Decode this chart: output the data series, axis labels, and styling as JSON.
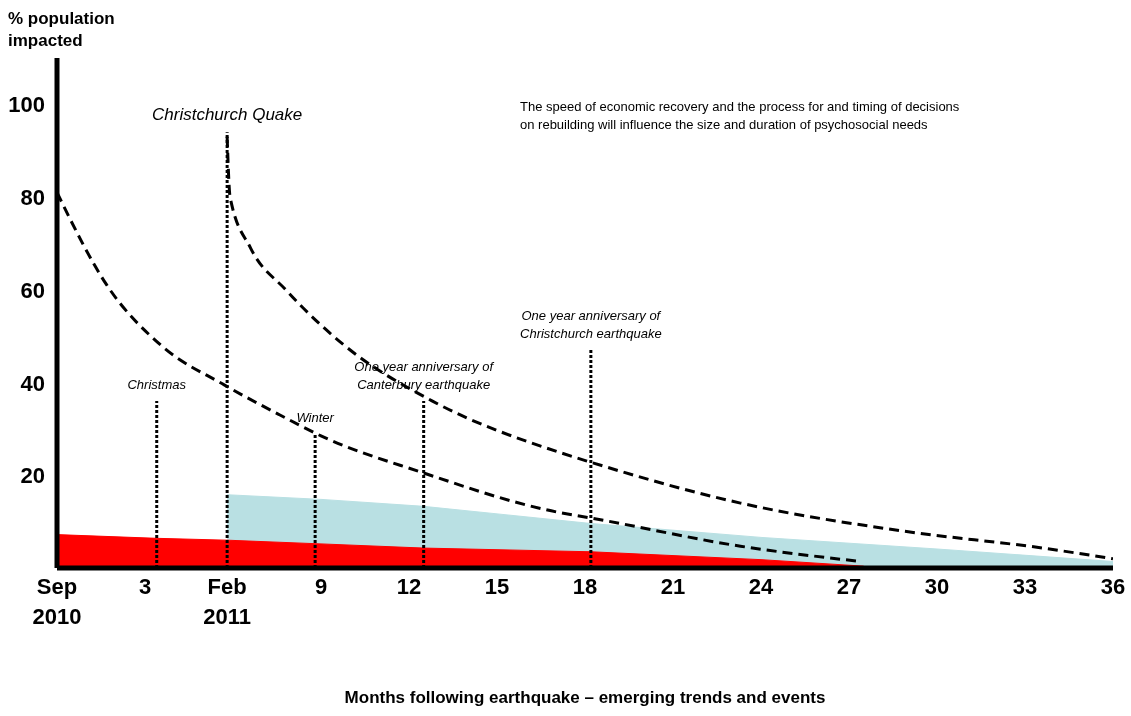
{
  "chart_data": {
    "type": "line",
    "ylabel": "% population impacted",
    "xlabel": "Months following earthquake – emerging trends and events",
    "xlim": [
      0,
      36
    ],
    "xticks": [
      {
        "value": 0,
        "label": "Sep 2010"
      },
      3,
      {
        "value": 5.8,
        "label": "Feb 2011"
      },
      9,
      12,
      15,
      18,
      21,
      24,
      27,
      30,
      33,
      36
    ],
    "ylim": [
      0,
      110
    ],
    "yticks": [
      20,
      40,
      60,
      80,
      100
    ],
    "grid": false,
    "marker": "none",
    "series": [
      {
        "type": "area",
        "color": "#b9e0e3",
        "x": [
          5.8,
          9,
          12.5,
          18.2,
          24,
          30,
          36
        ],
        "values": [
          15.8,
          14.8,
          13.3,
          9.6,
          6.6,
          4.1,
          1.4
        ]
      },
      {
        "type": "area",
        "color": "#ff0000",
        "x": [
          0,
          3.4,
          5.8,
          9,
          12.5,
          18.2,
          24,
          27.5
        ],
        "values": [
          7.2,
          6.4,
          6,
          5.2,
          4.3,
          3.5,
          1.8,
          0.4
        ]
      },
      {
        "color": "#000000",
        "line_style": "dashed",
        "x": [
          0,
          1.7,
          3.55,
          5.7,
          7.6,
          9,
          12.4,
          17.1,
          18.1,
          23.3,
          27.4
        ],
        "values": [
          81,
          61,
          48,
          39.5,
          33,
          28.5,
          20.7,
          12,
          10.9,
          4.7,
          1.4
        ]
      },
      {
        "color": "#000000",
        "line_style": "dashed",
        "x": [
          5.8,
          5.9,
          6.6,
          7.8,
          9.8,
          12.8,
          17.1,
          18.1,
          23.3,
          28.8,
          33.6,
          36
        ],
        "values": [
          93,
          80,
          69,
          60,
          48,
          36,
          25,
          23,
          14,
          8,
          4.3,
          2
        ]
      }
    ],
    "ref_lines": [
      {
        "axis": "x",
        "value": 3.4,
        "label": "Christmas",
        "line_style": "dotted"
      },
      {
        "axis": "x",
        "value": 5.8,
        "label": "Christchurch Quake",
        "line_style": "dotted"
      },
      {
        "axis": "x",
        "value": 8.8,
        "label": "Winter",
        "line_style": "dotted"
      },
      {
        "axis": "x",
        "value": 12.5,
        "label": "One year anniversary of Canterbury earthquake",
        "line_style": "dotted"
      },
      {
        "axis": "x",
        "value": 18.2,
        "label": "One year anniversary of Christchurch earthquake",
        "line_style": "dotted"
      }
    ],
    "annotations": [
      "The speed of economic recovery and the process for and timing of decisions on rebuilding will influence the size and duration of psychosocial needs"
    ]
  }
}
